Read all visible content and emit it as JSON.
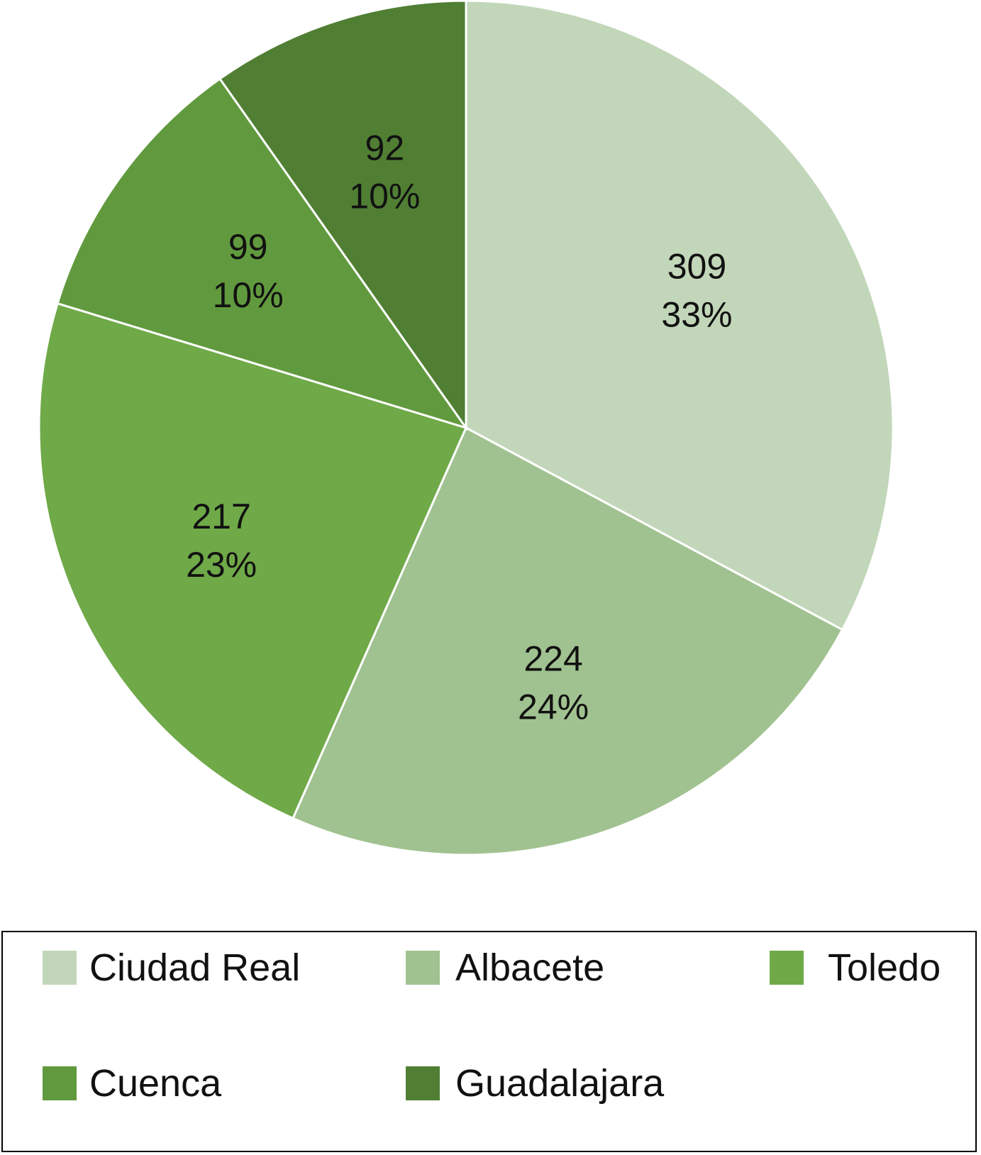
{
  "chart_data": {
    "type": "pie",
    "categories": [
      "Ciudad Real",
      "Albacete",
      "Toledo",
      "Cuenca",
      "Guadalajara"
    ],
    "values": [
      309,
      224,
      217,
      99,
      92
    ],
    "percent_labels": [
      "33%",
      "24%",
      "23%",
      "10%",
      "10%"
    ],
    "value_labels": [
      "309",
      "224",
      "217",
      "99",
      "92"
    ],
    "colors": [
      "#c2d7b9",
      "#a0c290",
      "#6fa948",
      "#619a3e",
      "#507f34"
    ],
    "legend_position": "bottom",
    "start_angle": "12 o'clock",
    "direction": "clockwise"
  }
}
